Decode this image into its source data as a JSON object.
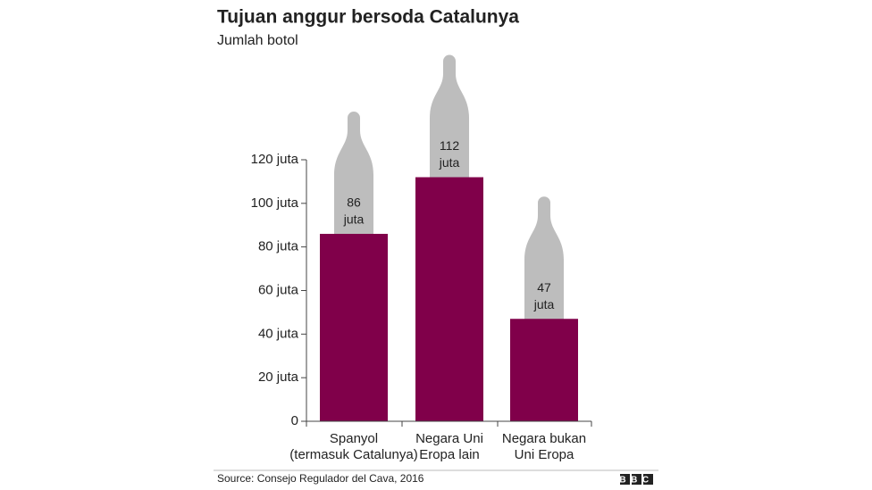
{
  "chart_data": {
    "type": "bar",
    "title": "Tujuan anggur bersoda Catalunya",
    "subtitle": "Jumlah botol",
    "categories": [
      [
        "Spanyol",
        "(termasuk Catalunya)"
      ],
      [
        "Negara Uni",
        "Eropa lain"
      ],
      [
        "Negara bukan",
        "Uni Eropa"
      ]
    ],
    "values": [
      86,
      112,
      47
    ],
    "value_labels": [
      [
        "86",
        "juta"
      ],
      [
        "112",
        "juta"
      ],
      [
        "47",
        "juta"
      ]
    ],
    "color": "#80004a",
    "ylim": [
      0,
      120
    ],
    "yticks": [
      0,
      {
        "value": 20,
        "label": "20 juta"
      },
      {
        "value": 40,
        "label": "40 juta"
      },
      {
        "value": 60,
        "label": "60 juta"
      },
      {
        "value": 80,
        "label": "80 juta"
      },
      {
        "value": 100,
        "label": "100 juta"
      },
      {
        "value": 120,
        "label": "120 juta"
      }
    ],
    "source": "Source: Consejo Regulador del Cava, 2016",
    "logo": "BBC"
  }
}
